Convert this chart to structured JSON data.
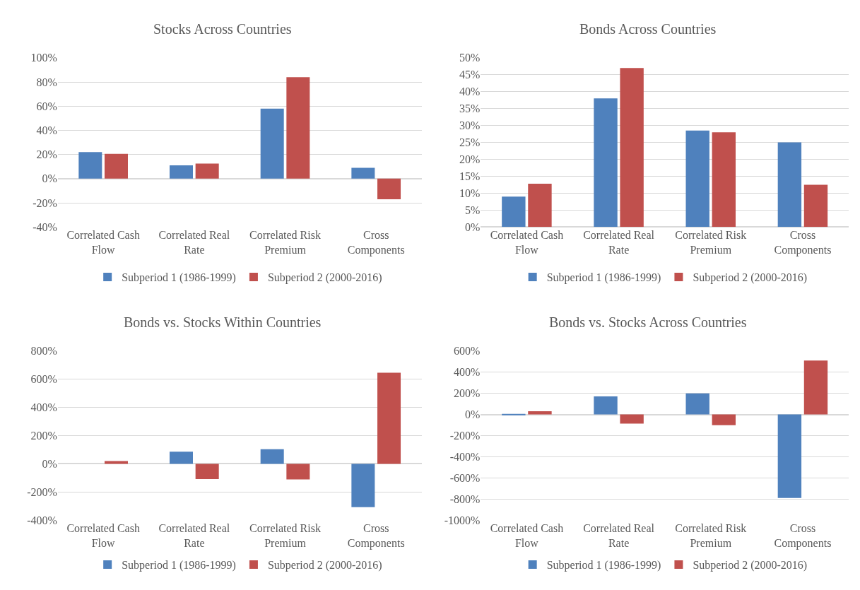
{
  "chart_data": [
    {
      "type": "bar",
      "title": "Stocks Across Countries",
      "categories": [
        "Correlated Cash Flow",
        "Correlated Real Rate",
        "Correlated Risk Premium",
        "Cross Components"
      ],
      "series": [
        {
          "name": "Subperiod 1 (1986-1999)",
          "color": "#4f81bd",
          "values": [
            22,
            11,
            58,
            9
          ]
        },
        {
          "name": "Subperiod 2 (2000-2016)",
          "color": "#c0504d",
          "values": [
            20.5,
            12.5,
            84,
            -17
          ]
        }
      ],
      "ylim": [
        -40,
        100
      ],
      "yticks": [
        {
          "value": -40,
          "label": "-40%"
        },
        {
          "value": -20,
          "label": "-20%"
        },
        {
          "value": 0,
          "label": "0%"
        },
        {
          "value": 20,
          "label": "20%"
        },
        {
          "value": 40,
          "label": "40%"
        },
        {
          "value": 60,
          "label": "60%"
        },
        {
          "value": 80,
          "label": "80%"
        },
        {
          "value": 100,
          "label": "100%"
        }
      ],
      "grid": "y",
      "legend": "bottom"
    },
    {
      "type": "bar",
      "title": "Bonds Across Countries",
      "categories": [
        "Correlated Cash Flow",
        "Correlated Real Rate",
        "Correlated Risk Premium",
        "Cross Components"
      ],
      "series": [
        {
          "name": "Subperiod 1 (1986-1999)",
          "color": "#4f81bd",
          "values": [
            9,
            38,
            28.5,
            25
          ]
        },
        {
          "name": "Subperiod 2 (2000-2016)",
          "color": "#c0504d",
          "values": [
            12.8,
            47,
            28,
            12.5
          ]
        }
      ],
      "ylim": [
        0,
        50
      ],
      "yticks": [
        {
          "value": 0,
          "label": "0%"
        },
        {
          "value": 5,
          "label": "5%"
        },
        {
          "value": 10,
          "label": "10%"
        },
        {
          "value": 15,
          "label": "15%"
        },
        {
          "value": 20,
          "label": "20%"
        },
        {
          "value": 25,
          "label": "25%"
        },
        {
          "value": 30,
          "label": "30%"
        },
        {
          "value": 35,
          "label": "35%"
        },
        {
          "value": 40,
          "label": "40%"
        },
        {
          "value": 45,
          "label": "45%"
        },
        {
          "value": 50,
          "label": "50%"
        }
      ],
      "grid": "y",
      "legend": "bottom"
    },
    {
      "type": "bar",
      "title": "Bonds vs. Stocks Within Countries",
      "categories": [
        "Correlated Cash Flow",
        "Correlated Real Rate",
        "Correlated Risk Premium",
        "Cross Components"
      ],
      "series": [
        {
          "name": "Subperiod 1 (1986-1999)",
          "color": "#4f81bd",
          "values": [
            0,
            86,
            103,
            -307
          ]
        },
        {
          "name": "Subperiod 2 (2000-2016)",
          "color": "#c0504d",
          "values": [
            20,
            -108,
            -111,
            646
          ]
        }
      ],
      "ylim": [
        -400,
        800
      ],
      "yticks": [
        {
          "value": -400,
          "label": "-400%"
        },
        {
          "value": -200,
          "label": "-200%"
        },
        {
          "value": 0,
          "label": "0%"
        },
        {
          "value": 200,
          "label": "200%"
        },
        {
          "value": 400,
          "label": "400%"
        },
        {
          "value": 600,
          "label": "600%"
        },
        {
          "value": 800,
          "label": "800%"
        }
      ],
      "grid": "y",
      "legend": "bottom"
    },
    {
      "type": "bar",
      "title": "Bonds vs. Stocks Across Countries",
      "categories": [
        "Correlated Cash Flow",
        "Correlated Real Rate",
        "Correlated Risk Premium",
        "Cross Components"
      ],
      "series": [
        {
          "name": "Subperiod 1 (1986-1999)",
          "color": "#4f81bd",
          "values": [
            -7,
            171,
            200,
            -790
          ]
        },
        {
          "name": "Subperiod 2 (2000-2016)",
          "color": "#c0504d",
          "values": [
            31,
            -86,
            -101,
            510
          ]
        }
      ],
      "ylim": [
        -1000,
        600
      ],
      "yticks": [
        {
          "value": -1000,
          "label": "-1000%"
        },
        {
          "value": -800,
          "label": "-800%"
        },
        {
          "value": -600,
          "label": "-600%"
        },
        {
          "value": -400,
          "label": "-400%"
        },
        {
          "value": -200,
          "label": "-200%"
        },
        {
          "value": 0,
          "label": "0%"
        },
        {
          "value": 200,
          "label": "200%"
        },
        {
          "value": 400,
          "label": "400%"
        },
        {
          "value": 600,
          "label": "600%"
        }
      ],
      "grid": "y",
      "legend": "bottom"
    }
  ]
}
